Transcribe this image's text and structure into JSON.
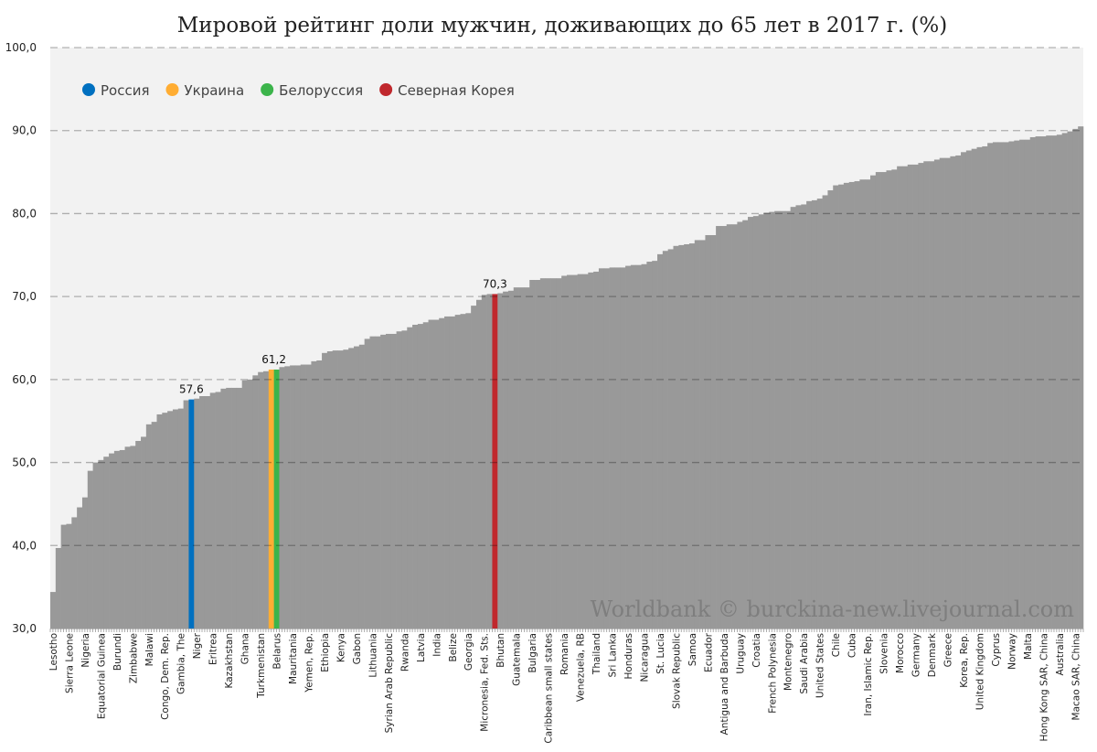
{
  "chart_data": {
    "type": "bar",
    "title": "Мировой рейтинг доли мужчин, доживающих до 65 лет в 2017 г. (%)",
    "xlabel": "",
    "ylabel": "",
    "ylim": [
      30,
      100
    ],
    "yticks": [
      "30,0",
      "40,0",
      "50,0",
      "60,0",
      "70,0",
      "80,0",
      "90,0",
      "100,0"
    ],
    "grid": true,
    "legend_position": "top-left",
    "bar_color": "#999999",
    "categories": [
      "Lesotho",
      "",
      "",
      "Sierra Leone",
      "",
      "",
      "Nigeria",
      "",
      "",
      "Equatorial Guinea",
      "",
      "",
      "Burundi",
      "",
      "",
      "Zimbabwe",
      "",
      "",
      "Malawi",
      "",
      "",
      "Congo, Dem. Rep.",
      "",
      "",
      "Gambia, The",
      "",
      "",
      "Niger",
      "",
      "",
      "Eritrea",
      "",
      "",
      "Kazakhstan",
      "",
      "",
      "Ghana",
      "",
      "",
      "Turkmenistan",
      "",
      "",
      "Belarus",
      "",
      "",
      "Mauritania",
      "",
      "",
      "Yemen, Rep.",
      "",
      "",
      "Ethiopia",
      "",
      "",
      "Kenya",
      "",
      "",
      "Gabon",
      "",
      "",
      "Lithuania",
      "",
      "",
      "Syrian Arab Republic",
      "",
      "",
      "Rwanda",
      "",
      "",
      "Latvia",
      "",
      "",
      "India",
      "",
      "",
      "Belize",
      "",
      "",
      "Georgia",
      "",
      "",
      "Micronesia, Fed. Sts.",
      "",
      "",
      "Bhutan",
      "",
      "",
      "Guatemala",
      "",
      "",
      "Bulgaria",
      "",
      "",
      "Caribbean small states",
      "",
      "",
      "Romania",
      "",
      "",
      "Venezuela, RB",
      "",
      "",
      "Thailand",
      "",
      "",
      "Sri Lanka",
      "",
      "",
      "Honduras",
      "",
      "",
      "Nicaragua",
      "",
      "",
      "St. Lucia",
      "",
      "",
      "Slovak Republic",
      "",
      "",
      "Samoa",
      "",
      "",
      "Ecuador",
      "",
      "",
      "Antigua and Barbuda",
      "",
      "",
      "Uruguay",
      "",
      "",
      "Croatia",
      "",
      "",
      "French Polynesia",
      "",
      "",
      "Montenegro",
      "",
      "",
      "Saudi Arabia",
      "",
      "",
      "United States",
      "",
      "",
      "Chile",
      "",
      "",
      "Cuba",
      "",
      "",
      "Iran, Islamic Rep.",
      "",
      "",
      "Slovenia",
      "",
      "",
      "Morocco",
      "",
      "",
      "Germany",
      "",
      "",
      "Denmark",
      "",
      "",
      "Greece",
      "",
      "",
      "Korea, Rep.",
      "",
      "",
      "United Kingdom",
      "",
      "",
      "Cyprus",
      "",
      "",
      "Norway",
      "",
      "",
      "Malta",
      "",
      "",
      "Hong Kong SAR, China",
      "",
      "",
      "Australia",
      "",
      "",
      "Macao SAR, China",
      ""
    ],
    "values": [
      34.4,
      39.7,
      42.5,
      42.6,
      43.4,
      44.6,
      45.8,
      49.0,
      50.0,
      50.3,
      50.7,
      51.1,
      51.4,
      51.5,
      51.9,
      52.0,
      52.6,
      53.1,
      54.6,
      54.9,
      55.8,
      56.0,
      56.2,
      56.4,
      56.5,
      57.5,
      57.6,
      57.7,
      58.0,
      58.0,
      58.4,
      58.5,
      58.9,
      59.0,
      59.0,
      59.0,
      59.9,
      60.0,
      60.5,
      60.9,
      61.0,
      61.2,
      61.2,
      61.5,
      61.6,
      61.7,
      61.7,
      61.8,
      61.8,
      62.2,
      62.3,
      63.2,
      63.4,
      63.5,
      63.5,
      63.6,
      63.8,
      64.0,
      64.2,
      64.9,
      65.2,
      65.2,
      65.4,
      65.5,
      65.5,
      65.8,
      65.9,
      66.3,
      66.6,
      66.7,
      66.9,
      67.2,
      67.2,
      67.4,
      67.6,
      67.6,
      67.8,
      67.9,
      68.0,
      68.9,
      69.6,
      70.2,
      70.3,
      70.3,
      70.4,
      70.6,
      70.7,
      71.1,
      71.1,
      71.1,
      72.0,
      72.0,
      72.2,
      72.2,
      72.2,
      72.2,
      72.5,
      72.6,
      72.6,
      72.7,
      72.7,
      72.9,
      73.0,
      73.4,
      73.4,
      73.5,
      73.5,
      73.5,
      73.7,
      73.8,
      73.8,
      73.9,
      74.2,
      74.3,
      75.1,
      75.5,
      75.7,
      76.1,
      76.2,
      76.3,
      76.4,
      76.8,
      76.8,
      77.4,
      77.4,
      78.5,
      78.5,
      78.7,
      78.7,
      79.0,
      79.2,
      79.6,
      79.7,
      79.9,
      80.1,
      80.2,
      80.3,
      80.3,
      80.3,
      80.8,
      81.0,
      81.1,
      81.5,
      81.6,
      81.8,
      82.2,
      82.8,
      83.4,
      83.5,
      83.7,
      83.8,
      83.9,
      84.1,
      84.1,
      84.6,
      85.0,
      85.0,
      85.2,
      85.3,
      85.7,
      85.7,
      85.9,
      85.9,
      86.1,
      86.3,
      86.3,
      86.5,
      86.7,
      86.7,
      86.9,
      87.0,
      87.4,
      87.6,
      87.8,
      88.0,
      88.1,
      88.5,
      88.6,
      88.6,
      88.6,
      88.7,
      88.8,
      88.9,
      88.9,
      89.2,
      89.3,
      89.3,
      89.4,
      89.4,
      89.5,
      89.7,
      89.9,
      90.2,
      90.5
    ],
    "highlights": [
      {
        "name": "Россия",
        "index": 26,
        "color": "#0070c0",
        "data_label": "57,6"
      },
      {
        "name": "Украина",
        "index": 41,
        "color": "#ffad33",
        "data_label": ""
      },
      {
        "name": "Белоруссия",
        "index": 42,
        "color": "#3cb44b",
        "data_label": "61,2"
      },
      {
        "name": "Северная Корея",
        "index": 83,
        "color": "#c0282d",
        "data_label": "70,3"
      }
    ],
    "watermark": "Worldbank © burckina-new.livejournal.com"
  }
}
